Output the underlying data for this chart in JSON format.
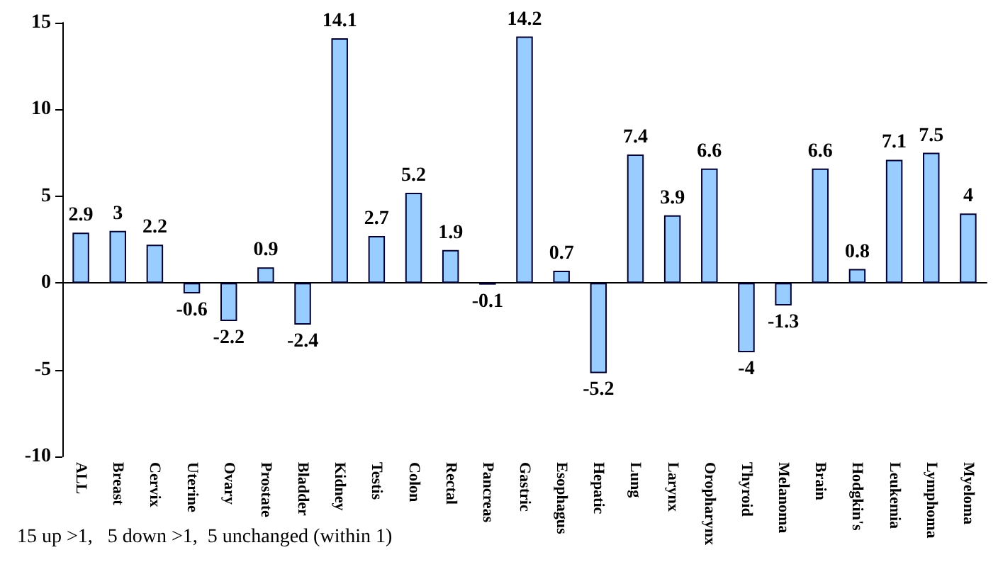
{
  "chart_data": {
    "type": "bar",
    "categories": [
      "ALL",
      "Breast",
      "Cervix",
      "Uterine",
      "Ovary",
      "Prostate",
      "Bladder",
      "Kidney",
      "Testis",
      "Colon",
      "Rectal",
      "Pancreas",
      "Gastric",
      "Esophagus",
      "Hepatic",
      "Lung",
      "Larynx",
      "Oropharynx",
      "Thyroid",
      "Melanoma",
      "Brain",
      "Hodgkin's",
      "Leukemia",
      "Lymphoma",
      "Myeloma"
    ],
    "values": [
      2.9,
      3,
      2.2,
      -0.6,
      -2.2,
      0.9,
      -2.4,
      14.1,
      2.7,
      5.2,
      1.9,
      -0.1,
      14.2,
      0.7,
      -5.2,
      7.4,
      3.9,
      6.6,
      -4,
      -1.3,
      6.6,
      0.8,
      7.1,
      7.5,
      4
    ],
    "color": "#99ccff",
    "data_labels": true,
    "ylim": [
      -10,
      15
    ],
    "yticks": [
      -10,
      -5,
      0,
      5,
      10,
      15
    ],
    "annotations": [
      "15 up >1,   5 down >1,  5 unchanged (within 1)"
    ]
  }
}
